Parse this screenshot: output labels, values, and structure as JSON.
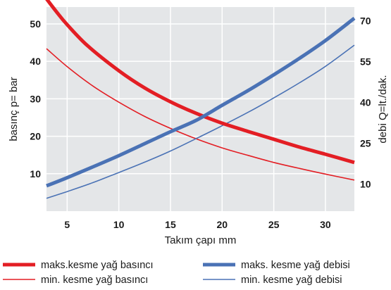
{
  "chart_data": {
    "type": "line",
    "xlabel": "Takım çapı mm",
    "ylabel_left": "basınç p= bar",
    "ylabel_right": "debi Q=lt./dak.",
    "xlim": [
      3,
      32.8
    ],
    "ylim_left": [
      0,
      54.5
    ],
    "ylim_right": [
      0,
      75
    ],
    "x_ticks": [
      5,
      10,
      15,
      20,
      25,
      30
    ],
    "y_left_ticks": [
      10,
      20,
      30,
      40,
      50
    ],
    "y_right_ticks": [
      10,
      25,
      40,
      55,
      70
    ],
    "grid": true,
    "legend_position": "bottom",
    "series": [
      {
        "name": "maks.kesme yağ basıncı",
        "axis": "left",
        "color": "#e31e24",
        "weight": "thick",
        "points": [
          [
            3,
            56.7
          ],
          [
            4,
            53.1
          ],
          [
            5,
            49.8
          ],
          [
            7,
            44.1
          ],
          [
            10,
            37.5
          ],
          [
            12.5,
            32.9
          ],
          [
            15,
            29.2
          ],
          [
            17.5,
            26.1
          ],
          [
            20,
            23.5
          ],
          [
            22.5,
            21.3
          ],
          [
            25,
            19.2
          ],
          [
            27.5,
            17.1
          ],
          [
            30,
            15.2
          ],
          [
            32.8,
            13.0
          ]
        ]
      },
      {
        "name": "min. kesme yağ basıncı",
        "axis": "left",
        "color": "#e31e24",
        "weight": "thin",
        "points": [
          [
            3,
            43.4
          ],
          [
            5,
            38.6
          ],
          [
            7.5,
            33.4
          ],
          [
            10,
            29.1
          ],
          [
            12.5,
            25.3
          ],
          [
            15,
            22.1
          ],
          [
            17.5,
            19.3
          ],
          [
            20,
            16.9
          ],
          [
            22.5,
            14.9
          ],
          [
            25,
            13.0
          ],
          [
            27.5,
            11.4
          ],
          [
            30,
            9.9
          ],
          [
            32.8,
            8.3
          ]
        ]
      },
      {
        "name": "maks. kesme yağ debisi",
        "axis": "right",
        "color": "#4a72b5",
        "weight": "thick",
        "points": [
          [
            3,
            9.3
          ],
          [
            5,
            12.3
          ],
          [
            7.5,
            16.3
          ],
          [
            10,
            20.4
          ],
          [
            12.5,
            24.8
          ],
          [
            15,
            29.2
          ],
          [
            17.5,
            33.4
          ],
          [
            20,
            38.9
          ],
          [
            22.5,
            44.3
          ],
          [
            25,
            50.1
          ],
          [
            27.5,
            56.2
          ],
          [
            30,
            62.7
          ],
          [
            32.8,
            70.9
          ]
        ]
      },
      {
        "name": "min. kesme yağ debisi",
        "axis": "right",
        "color": "#4a72b5",
        "weight": "thin",
        "points": [
          [
            3,
            4.7
          ],
          [
            5,
            7.2
          ],
          [
            7.5,
            10.5
          ],
          [
            10,
            14.2
          ],
          [
            12.5,
            18.0
          ],
          [
            15,
            22.1
          ],
          [
            17.5,
            26.7
          ],
          [
            20,
            31.4
          ],
          [
            22.5,
            36.3
          ],
          [
            25,
            41.6
          ],
          [
            27.5,
            47.2
          ],
          [
            30,
            53.2
          ],
          [
            32.8,
            61.0
          ]
        ]
      }
    ]
  }
}
